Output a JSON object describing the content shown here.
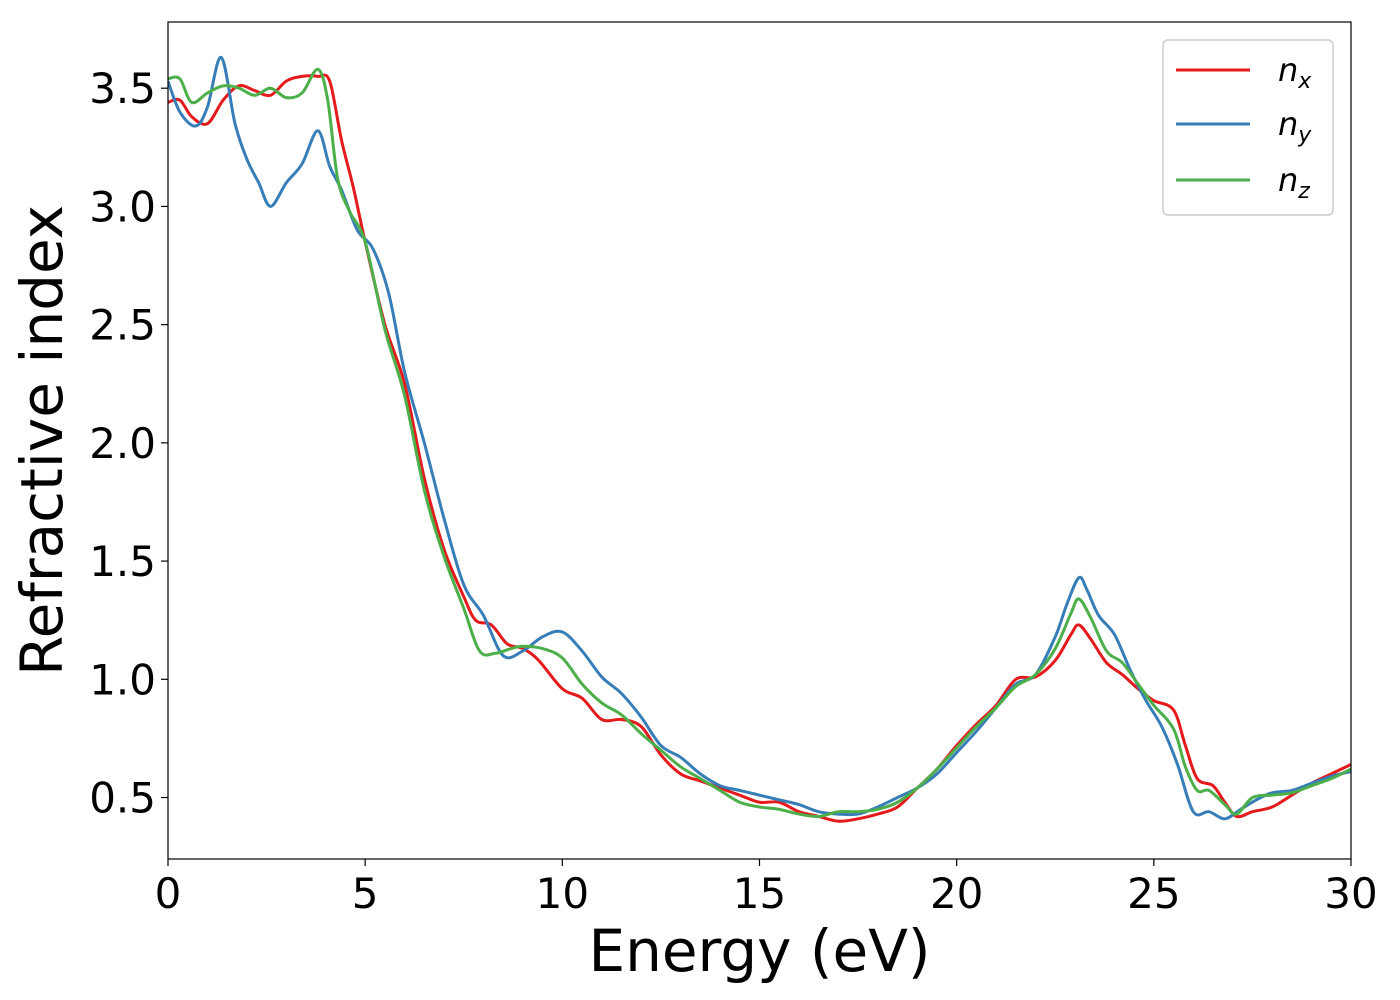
{
  "chart_data": {
    "type": "line",
    "title": "",
    "xlabel": "Energy (eV)",
    "ylabel": "Refractive index",
    "xlim": [
      0,
      30
    ],
    "ylim": [
      0.24,
      3.78
    ],
    "xticks": [
      0,
      5,
      10,
      15,
      20,
      25,
      30
    ],
    "yticks": [
      0.5,
      1.0,
      1.5,
      2.0,
      2.5,
      3.0,
      3.5
    ],
    "xtick_labels": [
      "0",
      "5",
      "10",
      "15",
      "20",
      "25",
      "30"
    ],
    "ytick_labels": [
      "0.5",
      "1.0",
      "1.5",
      "2.0",
      "2.5",
      "3.0",
      "3.5"
    ],
    "grid": false,
    "legend_position": "top-right",
    "series": [
      {
        "name": "n",
        "subscript": "x",
        "color": "#e41a1c",
        "x": [
          0,
          0.3,
          0.6,
          1.0,
          1.4,
          1.8,
          2.2,
          2.6,
          3.0,
          3.4,
          3.8,
          4.1,
          4.4,
          4.7,
          5.0,
          5.5,
          6.0,
          6.5,
          7.0,
          7.5,
          7.8,
          8.2,
          8.6,
          9.0,
          9.4,
          10.0,
          10.5,
          11.0,
          11.5,
          12.0,
          12.5,
          13.0,
          13.5,
          14.0,
          14.5,
          15.0,
          15.5,
          16.0,
          16.5,
          17.0,
          17.5,
          18.0,
          18.5,
          19.0,
          19.5,
          20.0,
          20.5,
          21.0,
          21.5,
          22.0,
          22.5,
          22.9,
          23.1,
          23.4,
          23.8,
          24.2,
          24.6,
          25.0,
          25.5,
          25.8,
          26.1,
          26.5,
          26.8,
          27.1,
          27.5,
          28.0,
          28.5,
          29.0,
          29.5,
          30.0
        ],
        "y": [
          3.44,
          3.45,
          3.38,
          3.35,
          3.45,
          3.51,
          3.49,
          3.47,
          3.53,
          3.55,
          3.55,
          3.53,
          3.28,
          3.08,
          2.85,
          2.5,
          2.25,
          1.85,
          1.55,
          1.35,
          1.25,
          1.23,
          1.15,
          1.13,
          1.08,
          0.96,
          0.92,
          0.83,
          0.83,
          0.8,
          0.68,
          0.6,
          0.57,
          0.54,
          0.51,
          0.48,
          0.48,
          0.44,
          0.42,
          0.4,
          0.41,
          0.43,
          0.46,
          0.54,
          0.62,
          0.72,
          0.81,
          0.89,
          1.0,
          1.01,
          1.08,
          1.19,
          1.23,
          1.17,
          1.07,
          1.02,
          0.96,
          0.91,
          0.87,
          0.72,
          0.58,
          0.55,
          0.48,
          0.42,
          0.44,
          0.46,
          0.51,
          0.56,
          0.6,
          0.64
        ]
      },
      {
        "name": "n",
        "subscript": "y",
        "color": "#377eb8",
        "x": [
          0,
          0.3,
          0.7,
          1.0,
          1.35,
          1.7,
          2.0,
          2.3,
          2.6,
          3.0,
          3.4,
          3.8,
          4.1,
          4.4,
          4.8,
          5.2,
          5.6,
          6.0,
          6.5,
          7.0,
          7.5,
          8.0,
          8.5,
          9.0,
          9.5,
          10.0,
          10.5,
          11.0,
          11.5,
          12.0,
          12.5,
          13.0,
          13.5,
          14.0,
          14.5,
          15.0,
          15.5,
          16.0,
          16.5,
          17.0,
          17.5,
          18.0,
          18.5,
          19.0,
          19.5,
          20.0,
          20.5,
          21.0,
          21.5,
          22.0,
          22.5,
          22.8,
          23.1,
          23.3,
          23.6,
          24.0,
          24.4,
          24.8,
          25.2,
          25.6,
          26.0,
          26.4,
          26.8,
          27.2,
          27.6,
          28.0,
          28.5,
          29.0,
          29.5,
          30.0
        ],
        "y": [
          3.53,
          3.4,
          3.34,
          3.42,
          3.63,
          3.35,
          3.2,
          3.1,
          3.0,
          3.1,
          3.18,
          3.32,
          3.17,
          3.07,
          2.9,
          2.82,
          2.63,
          2.3,
          2.0,
          1.68,
          1.4,
          1.27,
          1.1,
          1.12,
          1.18,
          1.2,
          1.12,
          1.01,
          0.94,
          0.84,
          0.72,
          0.67,
          0.6,
          0.55,
          0.53,
          0.51,
          0.49,
          0.47,
          0.44,
          0.43,
          0.43,
          0.46,
          0.5,
          0.54,
          0.6,
          0.69,
          0.78,
          0.88,
          0.98,
          1.02,
          1.18,
          1.32,
          1.43,
          1.38,
          1.27,
          1.19,
          1.04,
          0.91,
          0.8,
          0.64,
          0.44,
          0.44,
          0.41,
          0.45,
          0.49,
          0.52,
          0.53,
          0.56,
          0.59,
          0.61
        ]
      },
      {
        "name": "n",
        "subscript": "z",
        "color": "#4daf4a",
        "x": [
          0,
          0.3,
          0.6,
          1.0,
          1.4,
          1.8,
          2.2,
          2.6,
          3.0,
          3.4,
          3.8,
          4.05,
          4.3,
          4.6,
          5.0,
          5.5,
          6.0,
          6.5,
          7.0,
          7.5,
          7.9,
          8.3,
          8.7,
          9.0,
          9.5,
          10.0,
          10.5,
          11.0,
          11.5,
          12.0,
          12.5,
          13.0,
          13.5,
          14.0,
          14.5,
          15.0,
          15.5,
          16.0,
          16.5,
          17.0,
          17.5,
          18.0,
          18.5,
          19.0,
          19.5,
          20.0,
          20.5,
          21.0,
          21.5,
          22.0,
          22.5,
          22.9,
          23.1,
          23.4,
          23.8,
          24.2,
          24.6,
          25.0,
          25.5,
          25.8,
          26.1,
          26.4,
          26.8,
          27.1,
          27.5,
          28.0,
          28.5,
          29.0,
          29.5,
          30.0
        ],
        "y": [
          3.54,
          3.54,
          3.44,
          3.48,
          3.51,
          3.5,
          3.47,
          3.5,
          3.46,
          3.48,
          3.58,
          3.45,
          3.12,
          2.98,
          2.85,
          2.48,
          2.2,
          1.8,
          1.52,
          1.3,
          1.12,
          1.11,
          1.13,
          1.14,
          1.13,
          1.09,
          0.98,
          0.9,
          0.85,
          0.77,
          0.7,
          0.63,
          0.58,
          0.53,
          0.48,
          0.46,
          0.45,
          0.43,
          0.42,
          0.44,
          0.44,
          0.45,
          0.48,
          0.54,
          0.62,
          0.71,
          0.8,
          0.88,
          0.97,
          1.02,
          1.13,
          1.28,
          1.34,
          1.26,
          1.12,
          1.07,
          0.98,
          0.89,
          0.79,
          0.63,
          0.53,
          0.53,
          0.47,
          0.43,
          0.5,
          0.51,
          0.52,
          0.55,
          0.58,
          0.62
        ]
      }
    ]
  }
}
